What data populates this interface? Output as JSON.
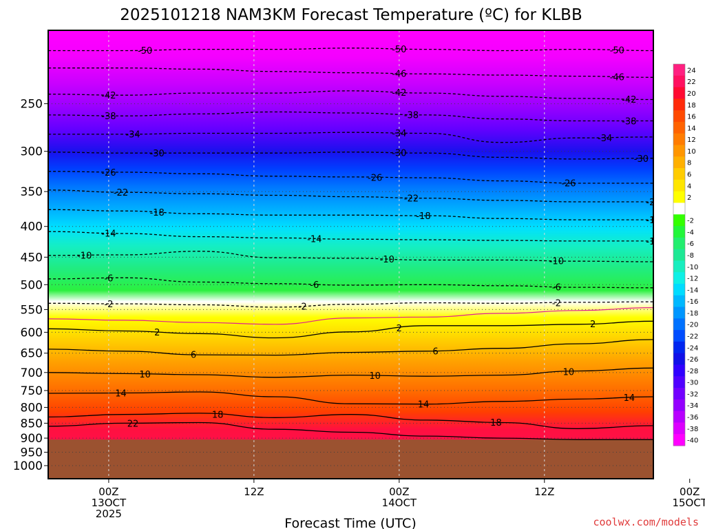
{
  "title": "2025101218 NAM3KM Forecast Temperature (ºC) for KLBB",
  "credit": "coolwx.com/models",
  "chart_data": {
    "type": "heatmap",
    "title": "2025101218 NAM3KM Forecast Temperature (ºC) for KLBB",
    "xlabel": "Forecast Time (UTC)",
    "ylabel": "",
    "x_range_hours": [
      -5,
      45
    ],
    "y_range_hpa": [
      1000,
      200
    ],
    "y_ticks": [
      {
        "label": "250",
        "hpa": 250
      },
      {
        "label": "300",
        "hpa": 300
      },
      {
        "label": "350",
        "hpa": 350
      },
      {
        "label": "400",
        "hpa": 400
      },
      {
        "label": "450",
        "hpa": 450
      },
      {
        "label": "500",
        "hpa": 500
      },
      {
        "label": "550",
        "hpa": 550
      },
      {
        "label": "600",
        "hpa": 600
      },
      {
        "label": "650",
        "hpa": 650
      },
      {
        "label": "700",
        "hpa": 700
      },
      {
        "label": "750",
        "hpa": 750
      },
      {
        "label": "800",
        "hpa": 800
      },
      {
        "label": "850",
        "hpa": 850
      },
      {
        "label": "900",
        "hpa": 900
      },
      {
        "label": "950",
        "hpa": 950
      },
      {
        "label": "1000",
        "hpa": 1000
      }
    ],
    "x_ticks": [
      {
        "hour": 0,
        "lines": [
          "00Z",
          "13OCT",
          "2025"
        ]
      },
      {
        "hour": 12,
        "lines": [
          "12Z"
        ]
      },
      {
        "hour": 24,
        "lines": [
          "00Z",
          "14OCT"
        ]
      },
      {
        "hour": 36,
        "lines": [
          "12Z"
        ]
      },
      {
        "hour": 48,
        "lines": [
          "00Z",
          "15OCT"
        ]
      }
    ],
    "surface_pressure_hpa": 905,
    "ground_color": "#9b5230",
    "colorbar": [
      {
        "label": "24",
        "color": "#ff2080"
      },
      {
        "label": "22",
        "color": "#ff1060"
      },
      {
        "label": "20",
        "color": "#ff0a32"
      },
      {
        "label": "18",
        "color": "#ff2a0a"
      },
      {
        "label": "16",
        "color": "#ff4a00"
      },
      {
        "label": "14",
        "color": "#ff6300"
      },
      {
        "label": "12",
        "color": "#ff7c00"
      },
      {
        "label": "10",
        "color": "#ff9600"
      },
      {
        "label": "8",
        "color": "#ffb000"
      },
      {
        "label": "6",
        "color": "#ffcc00"
      },
      {
        "label": "4",
        "color": "#ffe600"
      },
      {
        "label": "2",
        "color": "#ffff00"
      },
      {
        "label": "",
        "color": "#ffffff"
      },
      {
        "label": "-2",
        "color": "#33ff00"
      },
      {
        "label": "-4",
        "color": "#22f63a"
      },
      {
        "label": "-6",
        "color": "#22ee6e"
      },
      {
        "label": "-8",
        "color": "#1ee894"
      },
      {
        "label": "-10",
        "color": "#18eebf"
      },
      {
        "label": "-12",
        "color": "#0ef0e6"
      },
      {
        "label": "-14",
        "color": "#00dcff"
      },
      {
        "label": "-16",
        "color": "#00b8ff"
      },
      {
        "label": "-18",
        "color": "#0096ff"
      },
      {
        "label": "-20",
        "color": "#0072ff"
      },
      {
        "label": "-22",
        "color": "#004cff"
      },
      {
        "label": "-24",
        "color": "#0026f0"
      },
      {
        "label": "-26",
        "color": "#1010e8"
      },
      {
        "label": "-28",
        "color": "#3000ff"
      },
      {
        "label": "-30",
        "color": "#5000ff"
      },
      {
        "label": "-32",
        "color": "#7200ff"
      },
      {
        "label": "-34",
        "color": "#9400ff"
      },
      {
        "label": "-36",
        "color": "#b800ff"
      },
      {
        "label": "-38",
        "color": "#dc00ff"
      },
      {
        "label": "-40",
        "color": "#ff00ff"
      }
    ],
    "contours": [
      {
        "value": -50,
        "label": "-50",
        "hpa": [
          204,
          204,
          203,
          203,
          202,
          203,
          204,
          203,
          204
        ],
        "labels_at_hours": [
          3,
          24,
          42
        ]
      },
      {
        "value": -46,
        "label": "-46",
        "hpa": [
          218,
          218,
          219,
          221,
          222,
          223,
          224,
          225,
          226
        ],
        "labels_at_hours": [
          24,
          42
        ]
      },
      {
        "value": -42,
        "label": "-42",
        "hpa": [
          241,
          242,
          240,
          240,
          238,
          240,
          243,
          245,
          246
        ],
        "labels_at_hours": [
          0,
          24,
          43
        ]
      },
      {
        "value": -38,
        "label": "-38",
        "hpa": [
          261,
          262,
          260,
          258,
          259,
          261,
          265,
          267,
          267
        ],
        "labels_at_hours": [
          0,
          25,
          43
        ]
      },
      {
        "value": -34,
        "label": "-34",
        "hpa": [
          281,
          281,
          280,
          280,
          279,
          280,
          290,
          285,
          284
        ],
        "labels_at_hours": [
          2,
          24,
          41
        ]
      },
      {
        "value": -30,
        "label": "-30",
        "hpa": [
          301,
          302,
          302,
          302,
          301,
          302,
          307,
          309,
          308
        ],
        "labels_at_hours": [
          4,
          24,
          44
        ]
      },
      {
        "value": -26,
        "label": "-26",
        "hpa": [
          324,
          325,
          327,
          330,
          331,
          332,
          336,
          339,
          339
        ],
        "labels_at_hours": [
          0,
          22,
          38
        ]
      },
      {
        "value": -22,
        "label": "-22",
        "hpa": [
          348,
          351,
          353,
          355,
          357,
          359,
          362,
          364,
          364
        ],
        "labels_at_hours": [
          1,
          25,
          45
        ]
      },
      {
        "value": -18,
        "label": "-18",
        "hpa": [
          375,
          377,
          381,
          383,
          383,
          384,
          388,
          390,
          390
        ],
        "labels_at_hours": [
          4,
          26,
          45
        ]
      },
      {
        "value": -14,
        "label": "-14",
        "hpa": [
          408,
          411,
          416,
          418,
          420,
          421,
          422,
          423,
          423
        ],
        "labels_at_hours": [
          0,
          17,
          45
        ]
      },
      {
        "value": -10,
        "label": "-10",
        "hpa": [
          447,
          446,
          440,
          451,
          452,
          455,
          455,
          457,
          458
        ],
        "labels_at_hours": [
          -2,
          23,
          37
        ]
      },
      {
        "value": -6,
        "label": "-6",
        "hpa": [
          489,
          487,
          495,
          498,
          501,
          500,
          502,
          505,
          506
        ],
        "labels_at_hours": [
          0,
          17,
          37
        ]
      },
      {
        "value": -2,
        "label": "-2",
        "hpa": [
          537,
          538,
          540,
          545,
          539,
          536,
          537,
          535,
          534
        ],
        "labels_at_hours": [
          0,
          16,
          37
        ]
      },
      {
        "value": 0,
        "label": "0",
        "hpa": [
          570,
          573,
          578,
          582,
          568,
          566,
          558,
          552,
          546
        ],
        "labels_at_hours": []
      },
      {
        "value": 2,
        "label": "2",
        "hpa": [
          592,
          597,
          603,
          613,
          599,
          585,
          585,
          582,
          575
        ],
        "labels_at_hours": [
          4,
          24,
          40
        ]
      },
      {
        "value": 6,
        "label": "6",
        "hpa": [
          640,
          645,
          654,
          655,
          648,
          645,
          638,
          627,
          617
        ],
        "labels_at_hours": [
          7,
          27,
          46
        ]
      },
      {
        "value": 10,
        "label": "10",
        "hpa": [
          700,
          703,
          706,
          713,
          707,
          710,
          707,
          696,
          688
        ],
        "labels_at_hours": [
          3,
          22,
          38
        ]
      },
      {
        "value": 14,
        "label": "14",
        "hpa": [
          758,
          757,
          754,
          768,
          789,
          790,
          782,
          775,
          768
        ],
        "labels_at_hours": [
          1,
          26,
          43
        ]
      },
      {
        "value": 18,
        "label": "18",
        "hpa": [
          830,
          822,
          818,
          832,
          822,
          840,
          848,
          868,
          858
        ],
        "labels_at_hours": [
          9,
          32
        ]
      },
      {
        "value": 22,
        "label": "22",
        "hpa": [
          860,
          850,
          848,
          870,
          880,
          893,
          900,
          905,
          905
        ],
        "labels_at_hours": [
          2
        ]
      }
    ],
    "minor_contour": {
      "value": 0,
      "color": "#e0208f"
    }
  },
  "axes": {
    "xlabel": "Forecast Time (UTC)"
  }
}
